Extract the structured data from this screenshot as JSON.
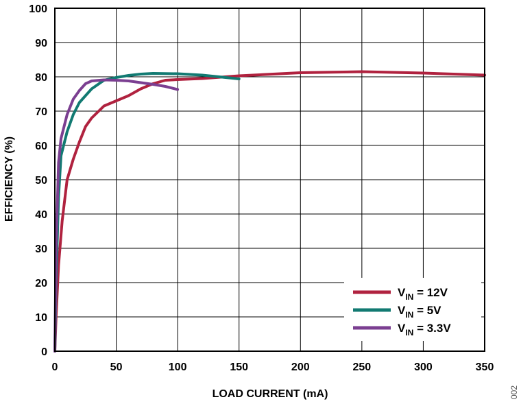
{
  "chart_data": {
    "type": "line",
    "xlabel": "LOAD CURRENT (mA)",
    "ylabel": "EFFICIENCY (%)",
    "xlim": [
      0,
      350
    ],
    "ylim": [
      0,
      100
    ],
    "x_ticks": [
      0,
      50,
      100,
      150,
      200,
      250,
      300,
      350
    ],
    "y_ticks": [
      0,
      10,
      20,
      30,
      40,
      50,
      60,
      70,
      80,
      90,
      100
    ],
    "grid": true,
    "legend_position": "bottom-right",
    "figure_id": "002",
    "series": [
      {
        "name_main": "V",
        "name_sub": "IN",
        "name_rest": " = 12V",
        "color": "#b0223f",
        "points": [
          [
            0,
            0
          ],
          [
            1,
            10
          ],
          [
            3,
            25
          ],
          [
            6,
            38
          ],
          [
            10,
            50
          ],
          [
            15,
            56
          ],
          [
            20,
            61
          ],
          [
            25,
            65.5
          ],
          [
            30,
            68
          ],
          [
            40,
            71.5
          ],
          [
            50,
            73
          ],
          [
            60,
            74.5
          ],
          [
            70,
            76.5
          ],
          [
            80,
            78
          ],
          [
            90,
            79
          ],
          [
            100,
            79.2
          ],
          [
            120,
            79.5
          ],
          [
            150,
            80.3
          ],
          [
            200,
            81.2
          ],
          [
            250,
            81.5
          ],
          [
            300,
            81.1
          ],
          [
            350,
            80.5
          ]
        ]
      },
      {
        "name_main": "V",
        "name_sub": "IN",
        "name_rest": " = 5V",
        "color": "#127a72",
        "points": [
          [
            0,
            0
          ],
          [
            1,
            20
          ],
          [
            3,
            45
          ],
          [
            5,
            57
          ],
          [
            10,
            64
          ],
          [
            15,
            69
          ],
          [
            20,
            72.5
          ],
          [
            30,
            76.5
          ],
          [
            40,
            79
          ],
          [
            50,
            79.8
          ],
          [
            60,
            80.4
          ],
          [
            70,
            80.8
          ],
          [
            80,
            81
          ],
          [
            100,
            80.9
          ],
          [
            120,
            80.5
          ],
          [
            150,
            79.4
          ]
        ]
      },
      {
        "name_main": "V",
        "name_sub": "IN",
        "name_rest": " = 3.3V",
        "color": "#7b3f91",
        "points": [
          [
            0,
            0
          ],
          [
            1,
            30
          ],
          [
            3,
            55
          ],
          [
            5,
            62
          ],
          [
            10,
            69
          ],
          [
            15,
            73.5
          ],
          [
            20,
            76
          ],
          [
            25,
            78
          ],
          [
            30,
            78.8
          ],
          [
            40,
            79.1
          ],
          [
            50,
            79
          ],
          [
            60,
            78.8
          ],
          [
            70,
            78.3
          ],
          [
            80,
            77.8
          ],
          [
            90,
            77.2
          ],
          [
            100,
            76.3
          ]
        ]
      }
    ]
  }
}
